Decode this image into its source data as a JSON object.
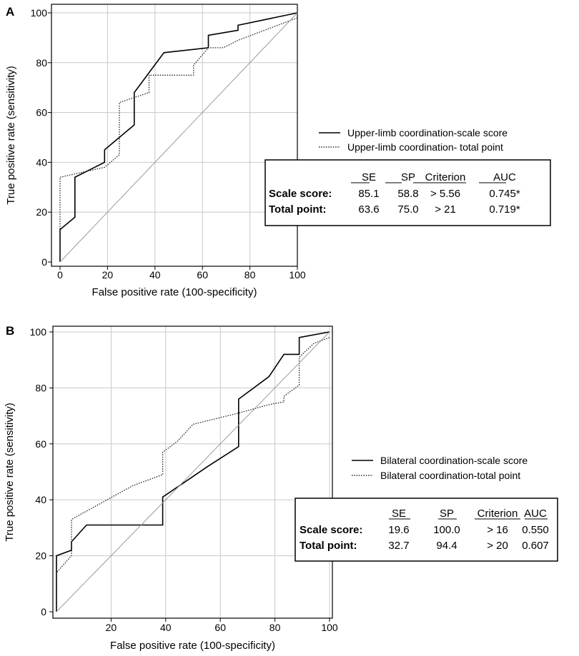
{
  "chart_data": [
    {
      "type": "line",
      "panel_label": "A",
      "xlabel": "False positive rate (100-specificity)",
      "ylabel": "True positive rate (sensitivity)",
      "xlim": [
        0,
        100
      ],
      "ylim": [
        0,
        100
      ],
      "grid": true,
      "x_ticks": [
        0,
        20,
        40,
        60,
        80,
        100
      ],
      "y_ticks": [
        0,
        20,
        40,
        60,
        80,
        100
      ],
      "legend": {
        "position": "right",
        "entries": [
          "Upper-limb coordination-scale score",
          "Upper-limb coordination- total point"
        ]
      },
      "series": [
        {
          "name": "Upper-limb coordination-scale score",
          "style": "solid",
          "x": [
            0,
            0,
            6.25,
            6.25,
            18.75,
            18.75,
            31.25,
            31.25,
            43.75,
            62.5,
            62.5,
            75,
            75,
            100
          ],
          "y": [
            0,
            13,
            18,
            34,
            40,
            45,
            55,
            68,
            84,
            86,
            91,
            93,
            95,
            100
          ]
        },
        {
          "name": "Upper-limb coordination- total point",
          "style": "dotted",
          "x": [
            0,
            0,
            0,
            18.75,
            25,
            25,
            37.5,
            37.5,
            56.25,
            56.25,
            62.5,
            68.75,
            75,
            100
          ],
          "y": [
            0,
            20,
            34,
            38,
            43,
            64,
            68,
            75,
            75,
            79,
            86,
            86,
            89,
            98
          ]
        },
        {
          "name": "reference",
          "style": "reference",
          "x": [
            0,
            100
          ],
          "y": [
            0,
            100
          ]
        }
      ],
      "table": {
        "headers": [
          "SE",
          "SP",
          "Criterion",
          "AUC"
        ],
        "rows": [
          {
            "label": "Scale score:",
            "cells": [
              "85.1",
              "58.8",
              "> 5.56",
              "0.745*"
            ]
          },
          {
            "label": "Total point:",
            "cells": [
              "63.6",
              "75.0",
              "> 21",
              "0.719*"
            ]
          }
        ]
      }
    },
    {
      "type": "line",
      "panel_label": "B",
      "xlabel": "False positive rate (100-specificity)",
      "ylabel": "True positive rate (sensitivity)",
      "xlim": [
        0,
        100
      ],
      "ylim": [
        0,
        100
      ],
      "grid": true,
      "x_ticks": [
        20,
        40,
        60,
        80,
        100
      ],
      "y_ticks": [
        0,
        20,
        40,
        60,
        80,
        100
      ],
      "legend": {
        "position": "right",
        "entries": [
          "Bilateral coordination-scale score",
          "Bilateral coordination-total point"
        ]
      },
      "series": [
        {
          "name": "Bilateral coordination-scale score",
          "style": "solid",
          "x": [
            0,
            0,
            5.5,
            5.5,
            11,
            38.9,
            38.9,
            55.5,
            66.7,
            66.7,
            77.8,
            83.3,
            88.9,
            88.9,
            100
          ],
          "y": [
            0,
            20,
            22,
            25,
            31,
            31,
            41,
            52,
            59,
            76,
            84,
            92,
            92,
            98,
            100
          ]
        },
        {
          "name": "Bilateral coordination-total point",
          "style": "dotted",
          "x": [
            0,
            0,
            5.5,
            5.5,
            16.7,
            27.8,
            38.9,
            38.9,
            44.4,
            50,
            66.7,
            77.8,
            83.3,
            83.3,
            88.9,
            88.9,
            94.4,
            100
          ],
          "y": [
            0,
            14,
            20,
            33,
            39,
            45,
            49,
            57,
            61,
            67,
            71,
            74,
            75,
            77,
            81,
            91,
            96,
            98
          ]
        },
        {
          "name": "reference",
          "style": "reference",
          "x": [
            0,
            100
          ],
          "y": [
            0,
            100
          ]
        }
      ],
      "table": {
        "headers": [
          "SE",
          "SP",
          "Criterion",
          "AUC"
        ],
        "rows": [
          {
            "label": "Scale score:",
            "cells": [
              "19.6",
              "100.0",
              "> 16",
              "0.550"
            ]
          },
          {
            "label": "Total point:",
            "cells": [
              "32.7",
              "94.4",
              "> 20",
              "0.607"
            ]
          }
        ]
      }
    }
  ]
}
